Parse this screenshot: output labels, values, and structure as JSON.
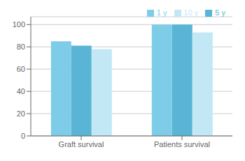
{
  "chart_data": {
    "type": "bar",
    "categories": [
      "Graft survival",
      "Patients survival"
    ],
    "series": [
      {
        "name": "1 y",
        "color": "#7ecde8",
        "values": [
          85,
          100
        ]
      },
      {
        "name": "5 y",
        "color": "#5ab4d6",
        "values": [
          81,
          100
        ]
      },
      {
        "name": "10 y",
        "color": "#c2e8f5",
        "values": [
          78,
          93
        ]
      }
    ],
    "ylim": [
      0,
      107
    ],
    "yticks": [
      0,
      20,
      40,
      60,
      80,
      100
    ],
    "grid": true,
    "legend": "upper right"
  }
}
